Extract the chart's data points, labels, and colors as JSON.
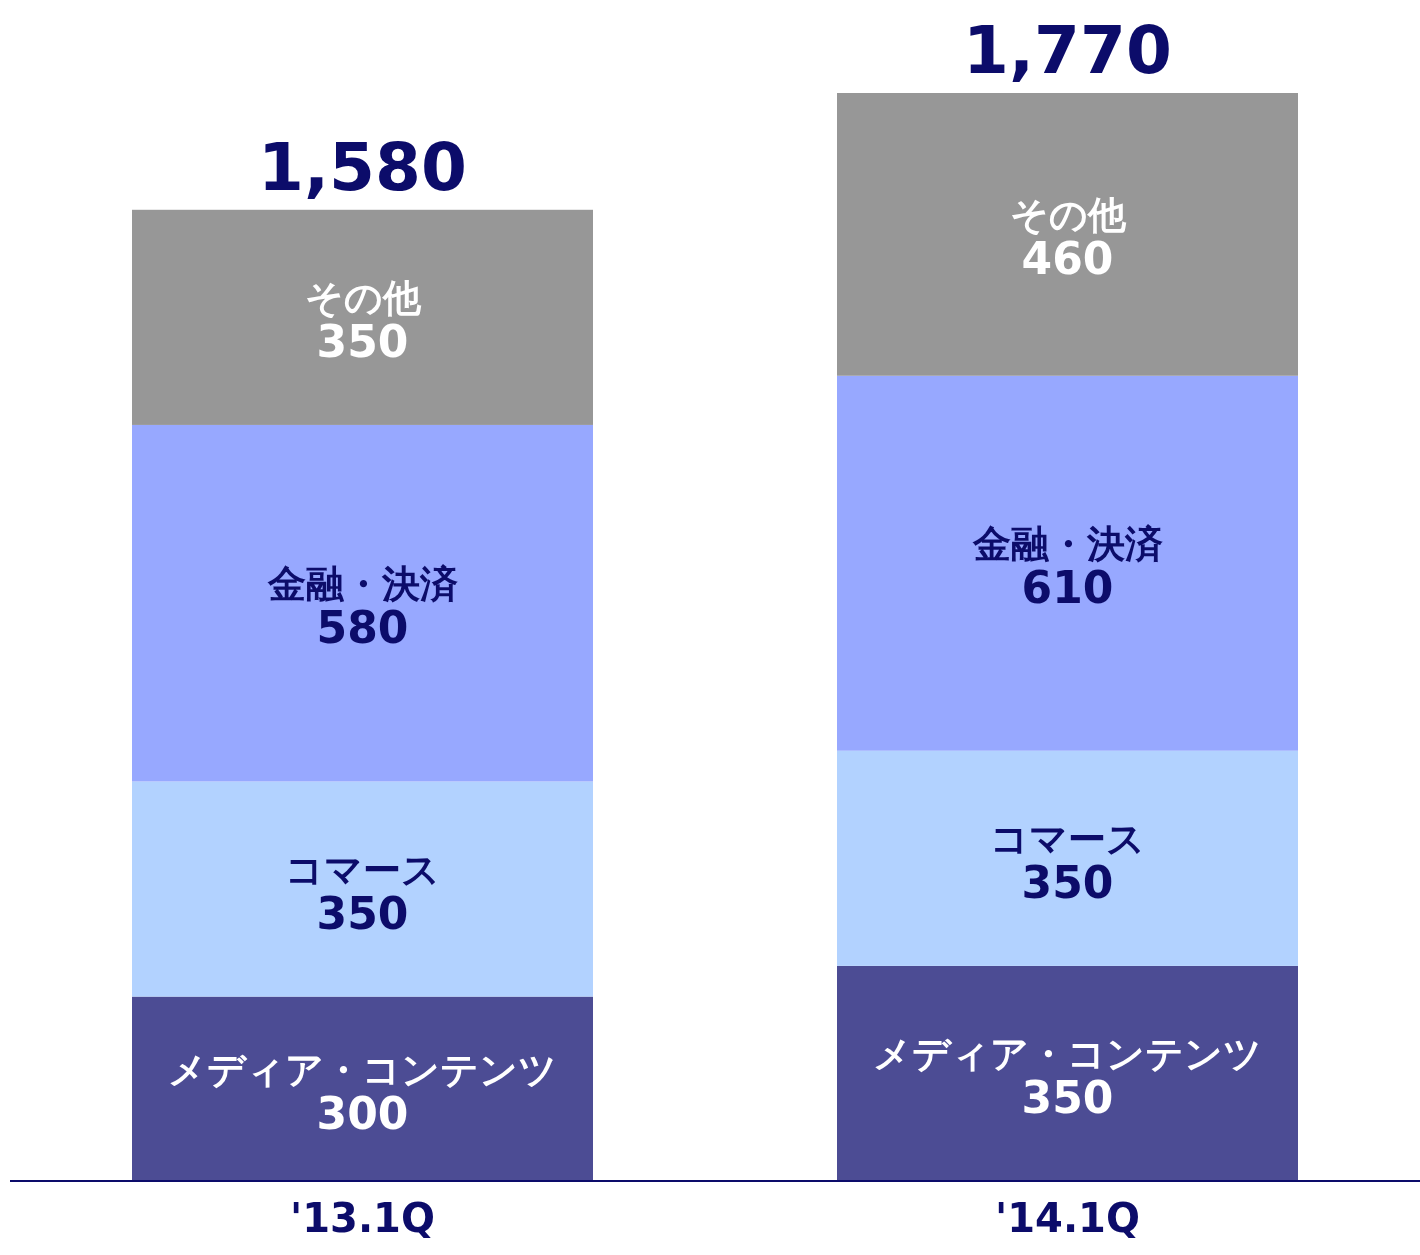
{
  "chart_data": {
    "type": "bar",
    "stacked": true,
    "data_labels": true,
    "categories": [
      "'13.1Q",
      "'14.1Q"
    ],
    "series": [
      {
        "name": "メディア・コンテンツ",
        "color": "#4c4c94",
        "values": [
          300,
          350
        ]
      },
      {
        "name": "コマース",
        "color": "#b2d2ff",
        "values": [
          350,
          350
        ]
      },
      {
        "name": "金融・決済",
        "color": "#97a8ff",
        "values": [
          580,
          610
        ]
      },
      {
        "name": "その他",
        "color": "#979797",
        "values": [
          350,
          460
        ]
      }
    ],
    "totals": [
      "1,580",
      "1,770"
    ]
  }
}
